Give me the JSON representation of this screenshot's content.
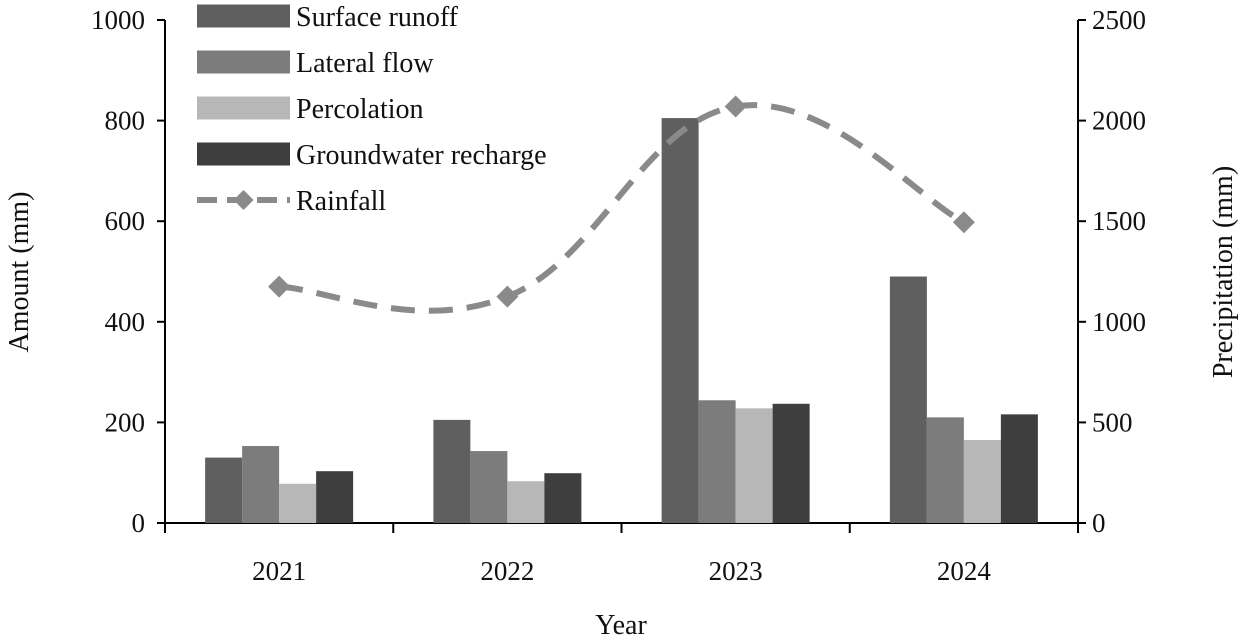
{
  "chart_data": {
    "type": "bar",
    "categories": [
      "2021",
      "2022",
      "2023",
      "2024"
    ],
    "xlabel": "Year",
    "ylabel": "Amount (mm)",
    "y2label": "Precipitation (mm)",
    "ylim": [
      0,
      1000
    ],
    "y2lim": [
      0,
      2500
    ],
    "yticks": [
      0,
      200,
      400,
      600,
      800,
      1000
    ],
    "y2ticks": [
      0,
      500,
      1000,
      1500,
      2000,
      2500
    ],
    "grid": false,
    "legend_position": "top-left",
    "series": [
      {
        "name": "Surface runoff",
        "type": "bar",
        "axis": "left",
        "color": "#5f5f5f",
        "values": [
          130,
          205,
          805,
          490
        ]
      },
      {
        "name": "Lateral flow",
        "type": "bar",
        "axis": "left",
        "color": "#7c7c7c",
        "values": [
          153,
          143,
          244,
          210
        ]
      },
      {
        "name": "Percolation",
        "type": "bar",
        "axis": "left",
        "color": "#b7b7b7",
        "values": [
          78,
          83,
          228,
          165
        ]
      },
      {
        "name": "Groundwater recharge",
        "type": "bar",
        "axis": "left",
        "color": "#3e3e3e",
        "values": [
          103,
          99,
          237,
          216
        ]
      },
      {
        "name": "Rainfall",
        "type": "line",
        "axis": "right",
        "color": "#8a8a8a",
        "style": "dashed",
        "marker": "diamond",
        "values": [
          1175,
          1125,
          2070,
          1495
        ]
      }
    ]
  }
}
